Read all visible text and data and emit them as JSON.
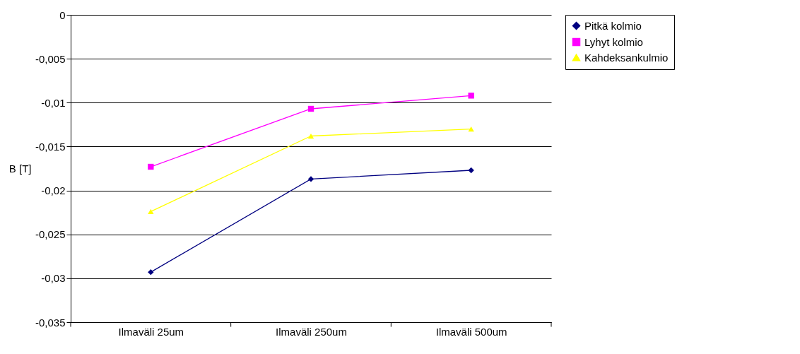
{
  "chart_data": {
    "type": "line",
    "ylabel": "B [T]",
    "categories": [
      "Ilmaväli 25um",
      "Ilmaväli 250um",
      "Ilmaväli 500um"
    ],
    "series": [
      {
        "name": "Pitkä kolmio",
        "color": "#000080",
        "marker": "diamond",
        "values": [
          -0.0293,
          -0.0187,
          -0.0177
        ]
      },
      {
        "name": "Lyhyt kolmio",
        "color": "#ff00ff",
        "marker": "square",
        "values": [
          -0.0173,
          -0.0107,
          -0.0092
        ]
      },
      {
        "name": "Kahdeksankulmio",
        "color": "#ffff00",
        "marker": "triangle",
        "values": [
          -0.0224,
          -0.0138,
          -0.013
        ]
      }
    ],
    "ylim": [
      -0.035,
      0
    ],
    "yticks": [
      {
        "value": -0.035,
        "label": "-0,035"
      },
      {
        "value": -0.03,
        "label": "-0,03"
      },
      {
        "value": -0.025,
        "label": "-0,025"
      },
      {
        "value": -0.02,
        "label": "-0,02"
      },
      {
        "value": -0.015,
        "label": "-0,015"
      },
      {
        "value": -0.01,
        "label": "-0,01"
      },
      {
        "value": -0.005,
        "label": "-0,005"
      },
      0
    ],
    "grid": "y",
    "legend": "right"
  }
}
